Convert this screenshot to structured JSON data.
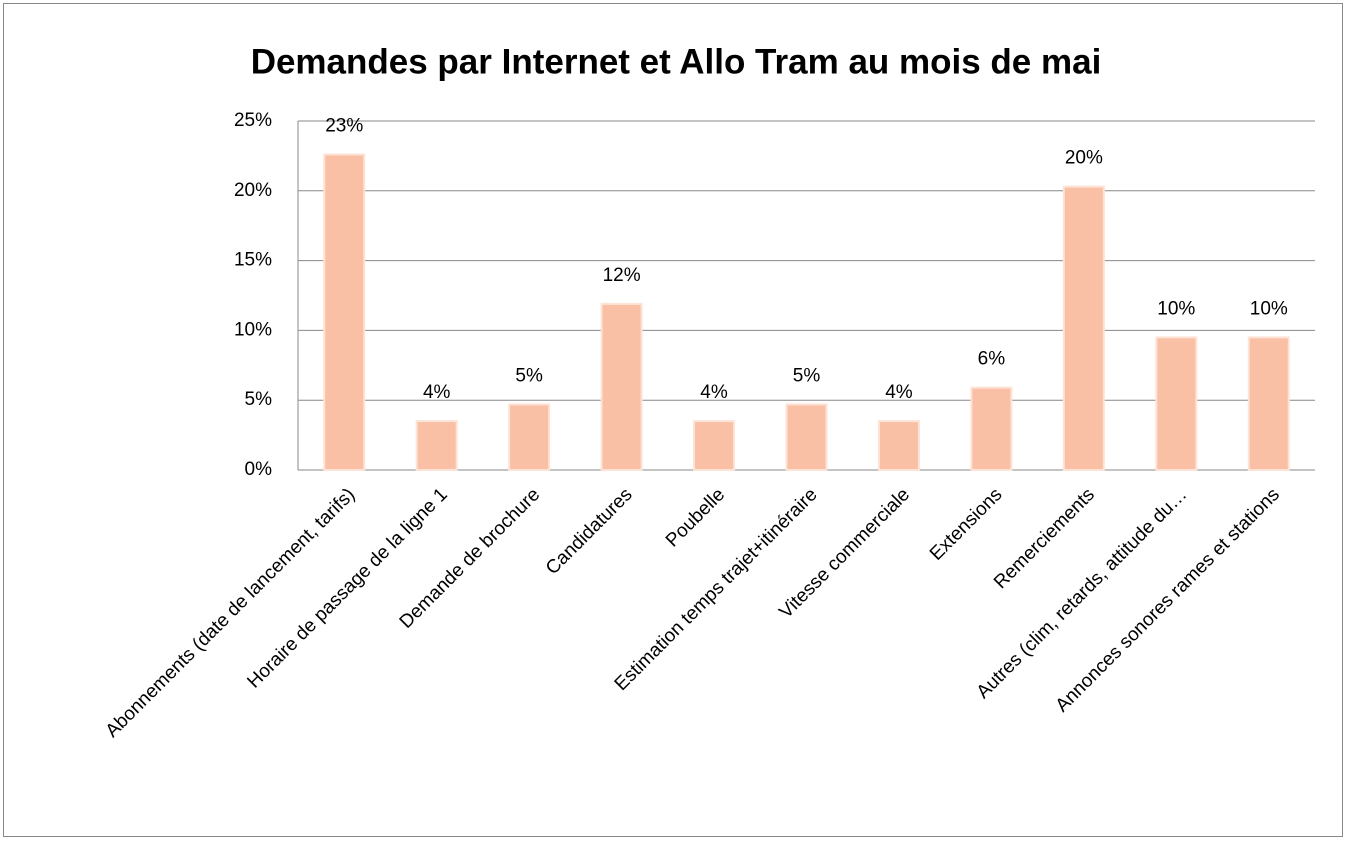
{
  "chart_data": {
    "type": "bar",
    "title": "Demandes par Internet et Allo Tram au mois de mai",
    "categories": [
      "Abonnements (date de lancement, tarifs)",
      "Horaire de passage de la ligne 1",
      "Demande de brochure",
      "Candidatures",
      "Poubelle",
      "Estimation temps trajet+itinéraire",
      "Vitesse commerciale",
      "Extensions",
      "Remerciements",
      "Autres (clim, retards, attitude du…",
      "Annonces sonores rames et stations"
    ],
    "values": [
      22.6,
      3.5,
      4.7,
      11.9,
      3.5,
      4.7,
      3.5,
      5.9,
      20.3,
      9.5,
      9.5
    ],
    "value_labels": [
      "23%",
      "4%",
      "5%",
      "12%",
      "4%",
      "5%",
      "4%",
      "6%",
      "20%",
      "10%",
      "10%"
    ],
    "color": "#f9c0a6",
    "ylim": [
      0,
      25
    ],
    "yticks": [
      {
        "value": 0,
        "label": "0%"
      },
      {
        "value": 5,
        "label": "5%"
      },
      {
        "value": 10,
        "label": "10%"
      },
      {
        "value": 15,
        "label": "15%"
      },
      {
        "value": 20,
        "label": "20%"
      },
      {
        "value": 25,
        "label": "25%"
      }
    ],
    "grid": true
  }
}
